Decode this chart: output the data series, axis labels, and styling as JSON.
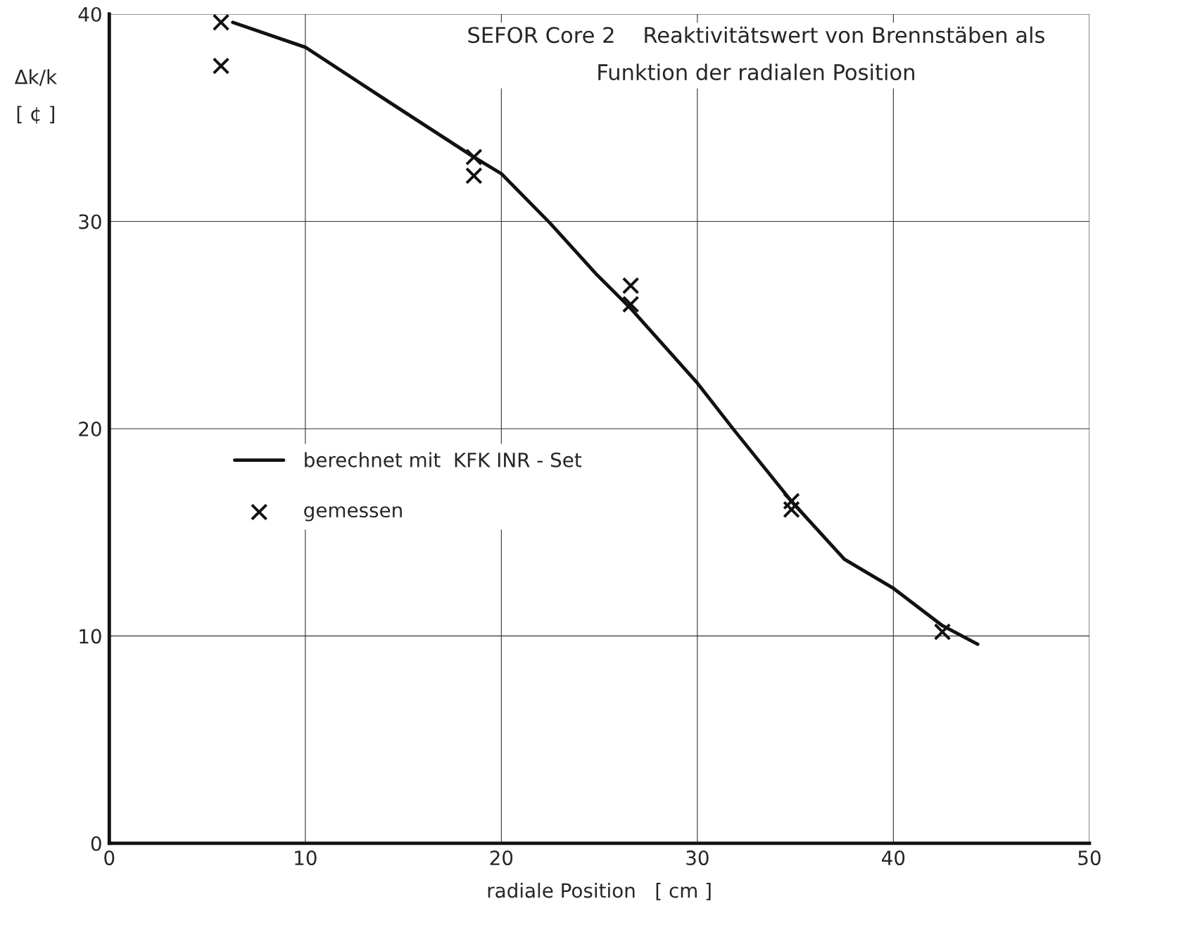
{
  "chart_data": {
    "type": "line",
    "title": "SEFOR Core 2    Reaktivitätswert von Brennstäben als\nFunktion der radialen Position",
    "xlabel": "radiale Position   [ cm ]",
    "ylabel": "Δk/k\n[ ¢ ]",
    "xlim": [
      0,
      50
    ],
    "ylim": [
      0,
      40
    ],
    "xticks": [
      0,
      10,
      20,
      30,
      40,
      50
    ],
    "yticks": [
      0,
      10,
      20,
      30,
      40
    ],
    "grid": true,
    "legend": "center left",
    "series": [
      {
        "name": "berechnet mit  KFK INR - Set",
        "color": "#111111",
        "marker": "none",
        "line_style": "solid",
        "x": [
          6.3,
          10,
          14.2,
          18.6,
          20,
          22.5,
          24.9,
          26.6,
          30,
          31.9,
          34.8,
          37.5,
          40,
          42.5,
          44.3
        ],
        "values": [
          39.6,
          38.4,
          35.8,
          33.1,
          32.3,
          29.9,
          27.4,
          25.8,
          22.2,
          19.9,
          16.5,
          13.7,
          12.3,
          10.5,
          9.6
        ]
      },
      {
        "name": "gemessen",
        "type": "scatter",
        "color": "#111111",
        "marker": "cross",
        "x": [
          5.7,
          5.7,
          18.6,
          18.6,
          26.6,
          26.6,
          34.8,
          34.8,
          42.5
        ],
        "values": [
          39.6,
          37.5,
          33.1,
          32.2,
          26.9,
          26.0,
          16.5,
          16.1,
          10.2
        ]
      }
    ]
  }
}
